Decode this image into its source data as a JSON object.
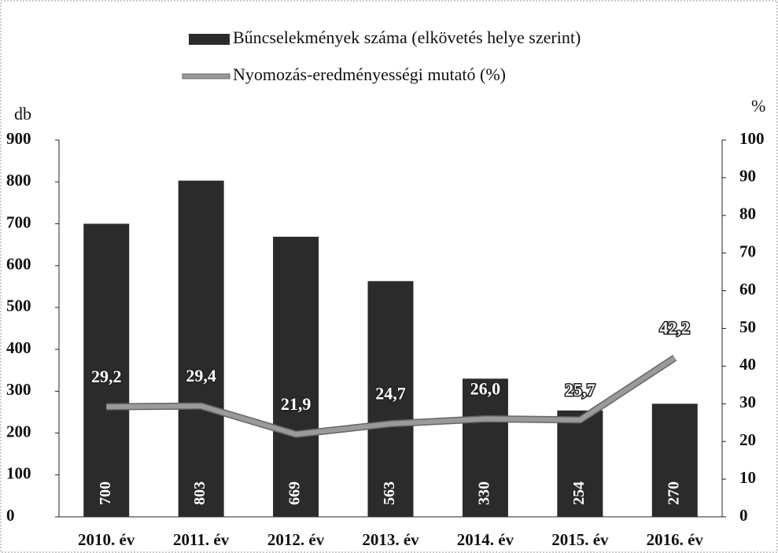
{
  "chart_data": {
    "type": "bar",
    "categories": [
      "2010. év",
      "2011. év",
      "2012. év",
      "2013. év",
      "2014. év",
      "2015. év",
      "2016. év"
    ],
    "series": [
      {
        "name": "Bűncselekmények száma (elkövetés helye szerint)",
        "type": "bar",
        "color": "#2b2b2b",
        "values": [
          700,
          803,
          669,
          563,
          330,
          254,
          270
        ]
      },
      {
        "name": "Nyomozás-eredményességi mutató (%)",
        "type": "line",
        "axis": "y2",
        "color": "#9a9a9a",
        "values": [
          29.2,
          29.4,
          21.9,
          24.7,
          26.0,
          25.7,
          42.2
        ],
        "value_labels": [
          "29,2",
          "29,4",
          "21,9",
          "24,7",
          "26,0",
          "25,7",
          "42,2"
        ]
      }
    ],
    "ylabel": "db",
    "y2label": "%",
    "ylim": [
      0,
      900
    ],
    "yticks": [
      0,
      100,
      200,
      300,
      400,
      500,
      600,
      700,
      800,
      900
    ],
    "y2lim": [
      0,
      100
    ],
    "y2ticks": [
      0,
      10,
      20,
      30,
      40,
      50,
      60,
      70,
      80,
      90,
      100
    ],
    "legend": "top"
  }
}
